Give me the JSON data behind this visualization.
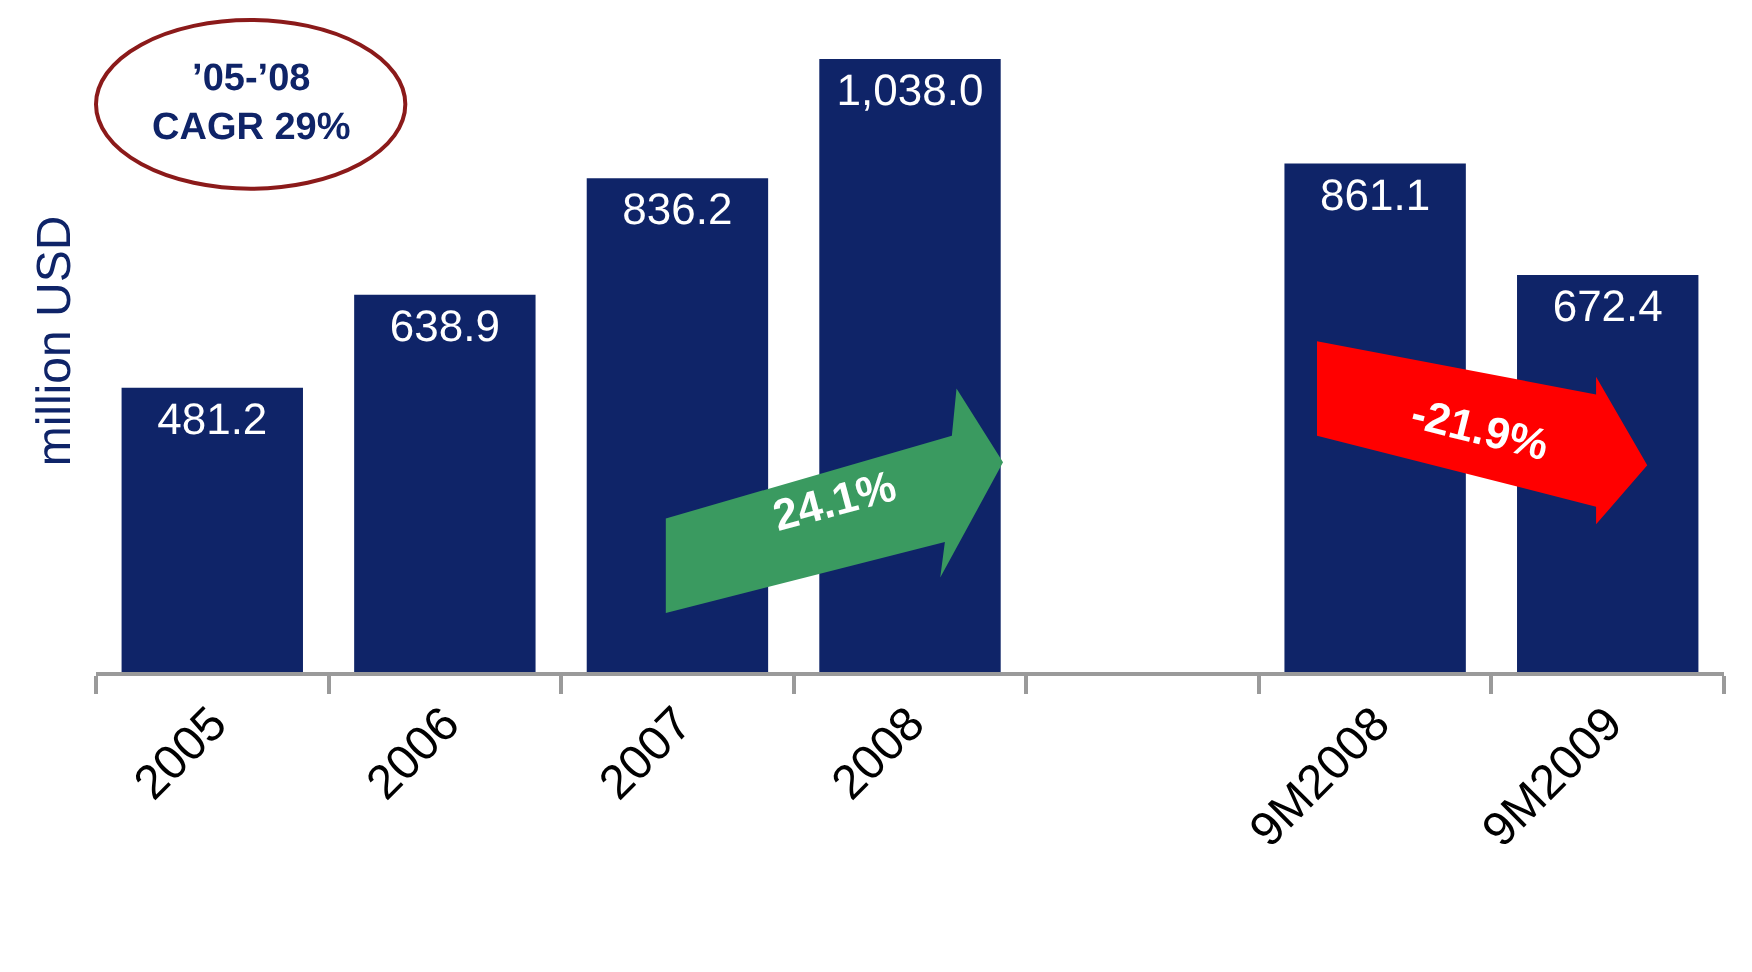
{
  "chart_data": {
    "type": "bar",
    "ylabel": "million USD",
    "categories": [
      "2005",
      "2006",
      "2007",
      "2008",
      null,
      "9M2008",
      "9M2009"
    ],
    "values": [
      481.2,
      638.9,
      836.2,
      1038.0,
      null,
      861.1,
      672.4
    ],
    "color": "#0f2468",
    "value_labels": [
      "481.2",
      "638.9",
      "836.2",
      "1,038.0",
      null,
      "861.1",
      "672.4"
    ],
    "grid": false,
    "legend": false,
    "annotations": [
      "’05-’08\nCAGR 29%",
      "24.1%",
      "-21.9%"
    ]
  }
}
